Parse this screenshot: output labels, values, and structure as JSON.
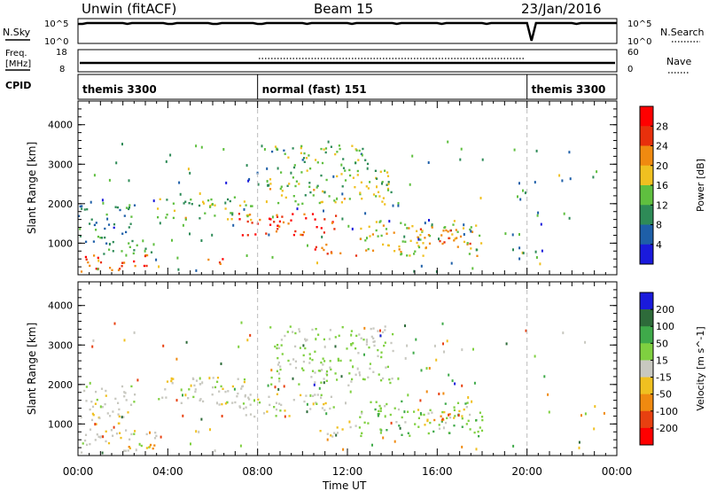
{
  "header": {
    "station": "Unwin (fitACF)",
    "beam": "Beam 15",
    "date": "23/Jan/2016"
  },
  "panels": {
    "nsky": {
      "label": "N.Sky",
      "left_ticks": [
        "10^5",
        "10^0"
      ],
      "right_ticks": [
        "10^5",
        "10^0"
      ],
      "right_label": "N.Search"
    },
    "freq": {
      "label_line1": "Freq.",
      "label_line2": "[MHz]",
      "left_ticks": [
        "18",
        "8"
      ],
      "right_ticks": [
        "60",
        "0"
      ],
      "right_label": "Nave"
    },
    "cpid": {
      "label": "CPID",
      "segments": [
        {
          "label": "themis 3300",
          "start_hour": 0,
          "end_hour": 8.0
        },
        {
          "label": "normal (fast) 151",
          "start_hour": 8.0,
          "end_hour": 20.0
        },
        {
          "label": "themis 3300",
          "start_hour": 20.0,
          "end_hour": 24.0
        }
      ]
    }
  },
  "chart_data": [
    {
      "type": "heatmap",
      "title": "",
      "xlabel": "Time UT",
      "ylabel": "Slant Range [km]",
      "xlim": [
        0,
        24
      ],
      "ylim": [
        200,
        4600
      ],
      "x_ticks": [
        "00:00",
        "04:00",
        "08:00",
        "12:00",
        "16:00",
        "20:00",
        "00:00"
      ],
      "y_ticks": [
        1000,
        2000,
        3000,
        4000
      ],
      "colorbar": {
        "label": "Power [dB]",
        "ticks": [
          4,
          8,
          12,
          16,
          20,
          24,
          28
        ],
        "range": [
          0,
          30
        ],
        "colors": [
          "#1a1adc",
          "#1e5fa8",
          "#2e8b57",
          "#5fbf3f",
          "#f0c020",
          "#f08a10",
          "#e8300c",
          "#ff0000"
        ]
      },
      "echo_regions": [
        {
          "t0": 0.0,
          "t1": 3.2,
          "r0": 300,
          "r1": 750,
          "power": 24
        },
        {
          "t0": 1.0,
          "t1": 3.5,
          "r0": 750,
          "r1": 1000,
          "power": 10
        },
        {
          "t0": 5.7,
          "t1": 6.6,
          "r0": 400,
          "r1": 700,
          "power": 24
        },
        {
          "t0": 3.5,
          "t1": 8.0,
          "r0": 1600,
          "r1": 2200,
          "power": 14
        },
        {
          "t0": 7.0,
          "t1": 11.5,
          "r0": 1200,
          "r1": 1800,
          "power": 26
        },
        {
          "t0": 10.5,
          "t1": 12.5,
          "r0": 700,
          "r1": 1000,
          "power": 24
        },
        {
          "t0": 8.5,
          "t1": 14.0,
          "r0": 2000,
          "r1": 2900,
          "power": 14
        },
        {
          "t0": 12.5,
          "t1": 18.0,
          "r0": 700,
          "r1": 1600,
          "power": 16
        },
        {
          "t0": 15.0,
          "t1": 17.5,
          "r0": 1000,
          "r1": 1400,
          "power": 22
        },
        {
          "t0": 0.0,
          "t1": 2.5,
          "r0": 1000,
          "r1": 2000,
          "power": 8
        },
        {
          "t0": 8.5,
          "t1": 13.0,
          "r0": 2900,
          "r1": 3500,
          "power": 12
        }
      ]
    },
    {
      "type": "heatmap",
      "title": "",
      "xlabel": "Time UT",
      "ylabel": "Slant Range [km]",
      "xlim": [
        0,
        24
      ],
      "ylim": [
        200,
        4600
      ],
      "x_ticks": [
        "00:00",
        "04:00",
        "08:00",
        "12:00",
        "16:00",
        "20:00",
        "00:00"
      ],
      "y_ticks": [
        1000,
        2000,
        3000,
        4000
      ],
      "colorbar": {
        "label": "Velocity [m s^-1]",
        "ticks": [
          200,
          100,
          50,
          15,
          -15,
          -50,
          -100,
          -200
        ],
        "range": [
          -250,
          250
        ],
        "colors": [
          "#1a1adc",
          "#2e6b3a",
          "#3faa4a",
          "#7fd040",
          "#c8c8c0",
          "#f0c020",
          "#f08a10",
          "#e84010",
          "#ff0000"
        ]
      },
      "echo_regions": [
        {
          "t0": 0.0,
          "t1": 3.5,
          "r0": 300,
          "r1": 900,
          "velocity": -5
        },
        {
          "t0": 0.0,
          "t1": 2.5,
          "r0": 1000,
          "r1": 2000,
          "velocity": 0
        },
        {
          "t0": 3.5,
          "t1": 8.0,
          "r0": 1500,
          "r1": 2200,
          "velocity": 0
        },
        {
          "t0": 7.0,
          "t1": 11.5,
          "r0": 1200,
          "r1": 1800,
          "velocity": 0
        },
        {
          "t0": 10.5,
          "t1": 12.5,
          "r0": 700,
          "r1": 1000,
          "velocity": -40
        },
        {
          "t0": 8.5,
          "t1": 14.0,
          "r0": 2000,
          "r1": 3500,
          "velocity": 30
        },
        {
          "t0": 12.5,
          "t1": 18.0,
          "r0": 700,
          "r1": 1600,
          "velocity": 60
        },
        {
          "t0": 15.0,
          "t1": 17.5,
          "r0": 1000,
          "r1": 1400,
          "velocity": -60
        },
        {
          "t0": 2.0,
          "t1": 4.0,
          "r0": 300,
          "r1": 500,
          "velocity": -80
        }
      ]
    }
  ]
}
